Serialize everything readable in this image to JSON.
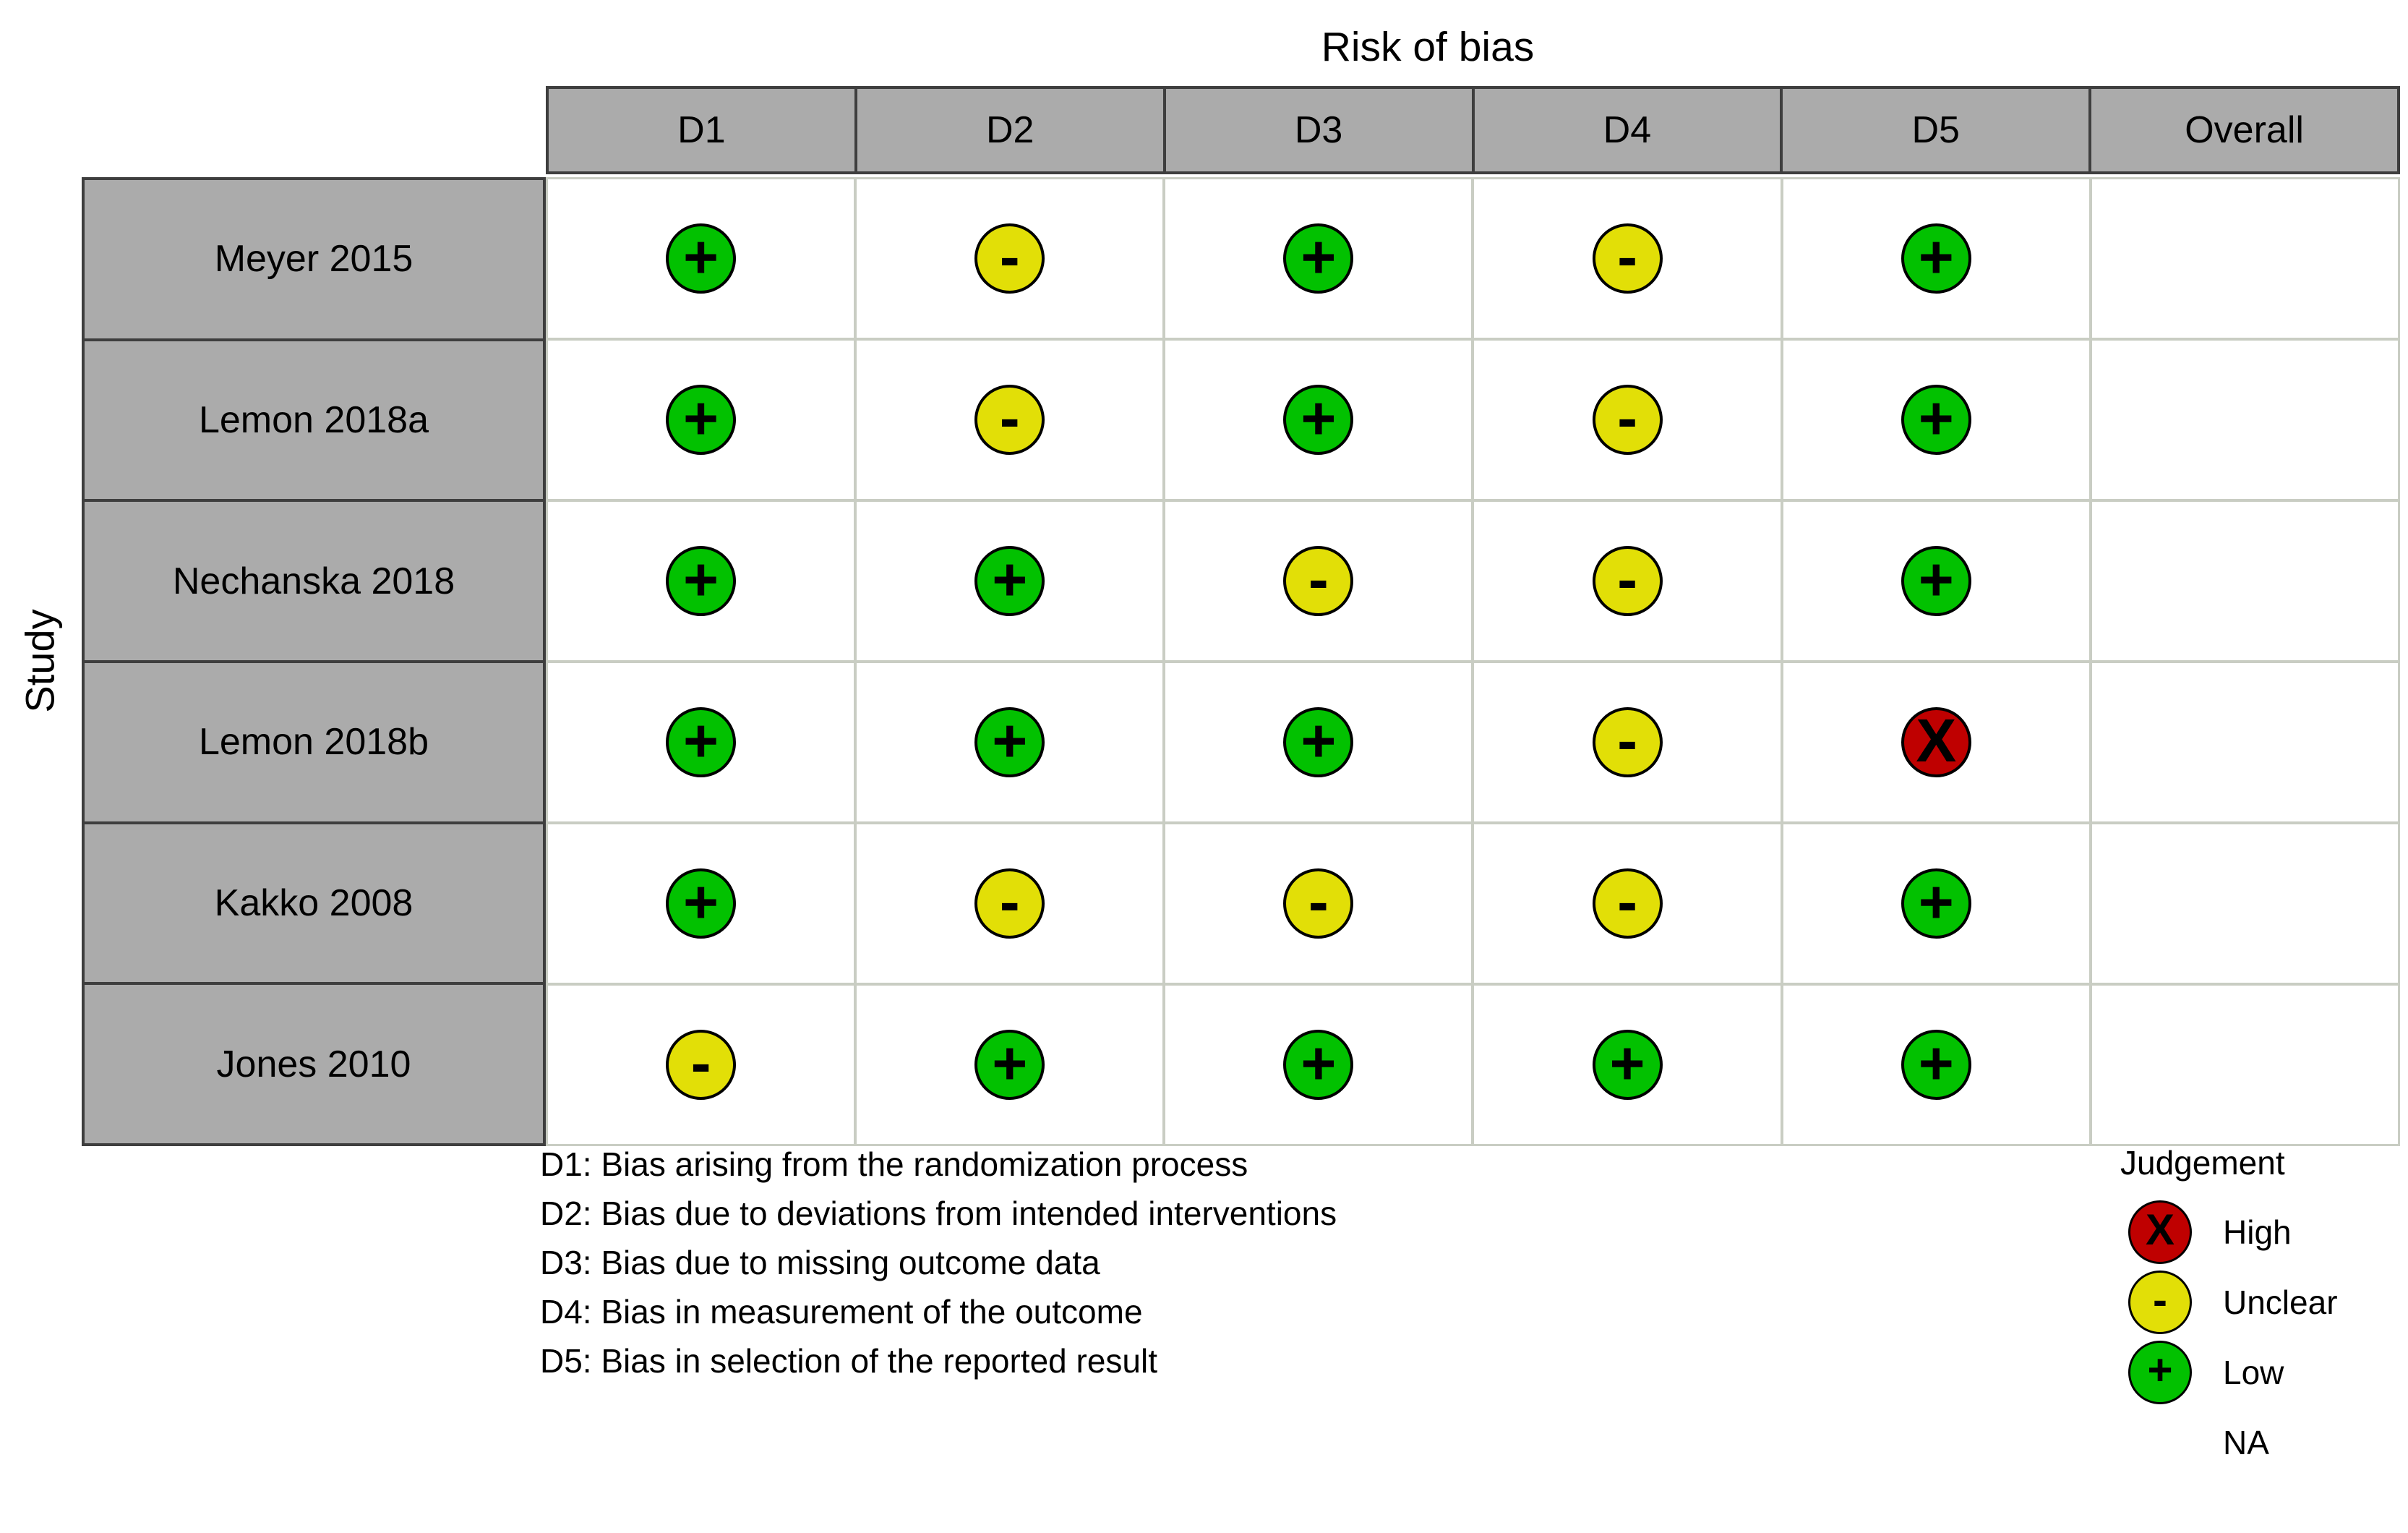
{
  "chart_data": {
    "type": "heatmap",
    "variant": "risk-of-bias-traffic-light-plot",
    "title": "Risk of bias",
    "y_axis_label": "Study",
    "columns": [
      "D1",
      "D2",
      "D3",
      "D4",
      "D5",
      "Overall"
    ],
    "rows": [
      {
        "study": "Meyer 2015",
        "judgements": [
          "Low",
          "Unclear",
          "Low",
          "Unclear",
          "Low",
          "NA"
        ]
      },
      {
        "study": "Lemon 2018a",
        "judgements": [
          "Low",
          "Unclear",
          "Low",
          "Unclear",
          "Low",
          "NA"
        ]
      },
      {
        "study": "Nechanska 2018",
        "judgements": [
          "Low",
          "Low",
          "Unclear",
          "Unclear",
          "Low",
          "NA"
        ]
      },
      {
        "study": "Lemon 2018b",
        "judgements": [
          "Low",
          "Low",
          "Low",
          "Unclear",
          "High",
          "NA"
        ]
      },
      {
        "study": "Kakko 2008",
        "judgements": [
          "Low",
          "Unclear",
          "Unclear",
          "Unclear",
          "Low",
          "NA"
        ]
      },
      {
        "study": "Jones 2010",
        "judgements": [
          "Unclear",
          "Low",
          "Low",
          "Low",
          "Low",
          "NA"
        ]
      }
    ],
    "judgement_styles": {
      "High": {
        "color": "#bf0000",
        "symbol": "X"
      },
      "Unclear": {
        "color": "#e2df07",
        "symbol": "-"
      },
      "Low": {
        "color": "#02c100",
        "symbol": "+"
      },
      "NA": {
        "color": "",
        "symbol": ""
      }
    },
    "legend": {
      "title": "Judgement",
      "items": [
        {
          "label": "High",
          "judgement": "High"
        },
        {
          "label": "Unclear",
          "judgement": "Unclear"
        },
        {
          "label": "Low",
          "judgement": "Low"
        },
        {
          "label": "NA",
          "judgement": "NA"
        }
      ]
    },
    "footnotes": [
      "D1: Bias arising from the randomization process",
      "D2: Bias due to deviations from intended interventions",
      "D3: Bias due to missing outcome data",
      "D4: Bias in measurement of the outcome",
      "D5: Bias in selection of the reported result"
    ],
    "style": {
      "header_bg": "#ababab",
      "dark_border": "#3e3e3e",
      "grid_line": "#c9cdc3",
      "cell_bg": "#ffffff"
    }
  }
}
